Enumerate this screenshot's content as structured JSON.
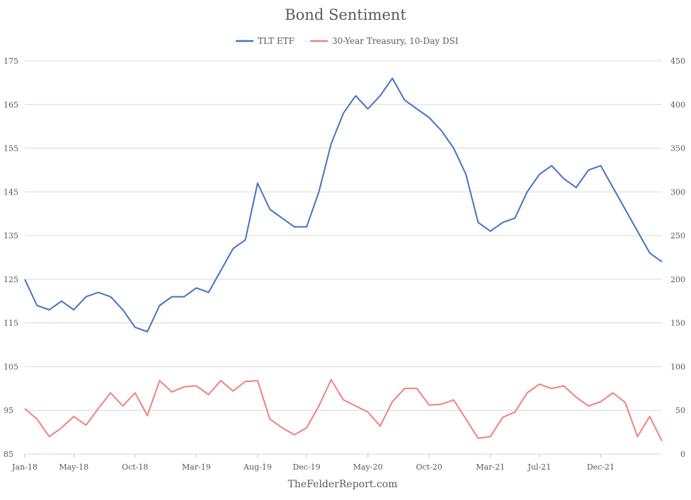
{
  "chart_data": {
    "type": "line",
    "title": "Bond Sentiment",
    "source": "TheFelderReport.com",
    "x_ticks": [
      "Jan-18",
      "May-18",
      "Oct-18",
      "Mar-19",
      "Aug-19",
      "Dec-19",
      "May-20",
      "Oct-20",
      "Mar-21",
      "Jul-21",
      "Dec-21"
    ],
    "x_range": [
      "2018-01",
      "2022-05"
    ],
    "y_left": {
      "min": 85,
      "max": 175,
      "ticks": [
        85,
        95,
        105,
        115,
        125,
        135,
        145,
        155,
        165,
        175
      ]
    },
    "y_right": {
      "min": 0,
      "max": 450,
      "ticks": [
        0,
        50,
        100,
        150,
        200,
        250,
        300,
        350,
        400,
        450
      ]
    },
    "grid": true,
    "legend_position": "top",
    "series": [
      {
        "name": "TLT ETF",
        "axis": "left",
        "color": "#4472c4",
        "x": [
          "2018-01",
          "2018-02",
          "2018-03",
          "2018-04",
          "2018-05",
          "2018-06",
          "2018-07",
          "2018-08",
          "2018-09",
          "2018-10",
          "2018-11",
          "2018-12",
          "2019-01",
          "2019-02",
          "2019-03",
          "2019-04",
          "2019-05",
          "2019-06",
          "2019-07",
          "2019-08",
          "2019-09",
          "2019-10",
          "2019-11",
          "2019-12",
          "2020-01",
          "2020-02",
          "2020-03",
          "2020-04",
          "2020-05",
          "2020-06",
          "2020-07",
          "2020-08",
          "2020-09",
          "2020-10",
          "2020-11",
          "2020-12",
          "2021-01",
          "2021-02",
          "2021-03",
          "2021-04",
          "2021-05",
          "2021-06",
          "2021-07",
          "2021-08",
          "2021-09",
          "2021-10",
          "2021-11",
          "2021-12",
          "2022-01",
          "2022-02",
          "2022-03",
          "2022-04",
          "2022-05"
        ],
        "values": [
          125,
          119,
          118,
          120,
          118,
          121,
          122,
          121,
          118,
          114,
          113,
          119,
          121,
          121,
          123,
          122,
          127,
          132,
          134,
          147,
          141,
          139,
          137,
          137,
          145,
          156,
          163,
          167,
          164,
          167,
          171,
          166,
          164,
          162,
          159,
          155,
          149,
          138,
          136,
          138,
          139,
          145,
          149,
          151,
          148,
          146,
          150,
          151,
          146,
          141,
          136,
          131,
          129
        ]
      },
      {
        "name": "30-Year Treasury, 10-Day DSI",
        "axis": "right",
        "color": "#f08080",
        "x": [
          "2018-01",
          "2018-02",
          "2018-03",
          "2018-04",
          "2018-05",
          "2018-06",
          "2018-07",
          "2018-08",
          "2018-09",
          "2018-10",
          "2018-11",
          "2018-12",
          "2019-01",
          "2019-02",
          "2019-03",
          "2019-04",
          "2019-05",
          "2019-06",
          "2019-07",
          "2019-08",
          "2019-09",
          "2019-10",
          "2019-11",
          "2019-12",
          "2020-01",
          "2020-02",
          "2020-03",
          "2020-04",
          "2020-05",
          "2020-06",
          "2020-07",
          "2020-08",
          "2020-09",
          "2020-10",
          "2020-11",
          "2020-12",
          "2021-01",
          "2021-02",
          "2021-03",
          "2021-04",
          "2021-05",
          "2021-06",
          "2021-07",
          "2021-08",
          "2021-09",
          "2021-10",
          "2021-11",
          "2021-12",
          "2022-01",
          "2022-02",
          "2022-03",
          "2022-04",
          "2022-05"
        ],
        "values": [
          52,
          40,
          20,
          30,
          43,
          33,
          52,
          70,
          55,
          70,
          44,
          84,
          71,
          77,
          78,
          68,
          84,
          72,
          83,
          84,
          40,
          30,
          22,
          30,
          55,
          85,
          62,
          55,
          48,
          32,
          60,
          75,
          75,
          56,
          57,
          62,
          40,
          18,
          20,
          42,
          48,
          70,
          80,
          75,
          78,
          65,
          55,
          60,
          70,
          59,
          20,
          43,
          15
        ]
      }
    ]
  }
}
